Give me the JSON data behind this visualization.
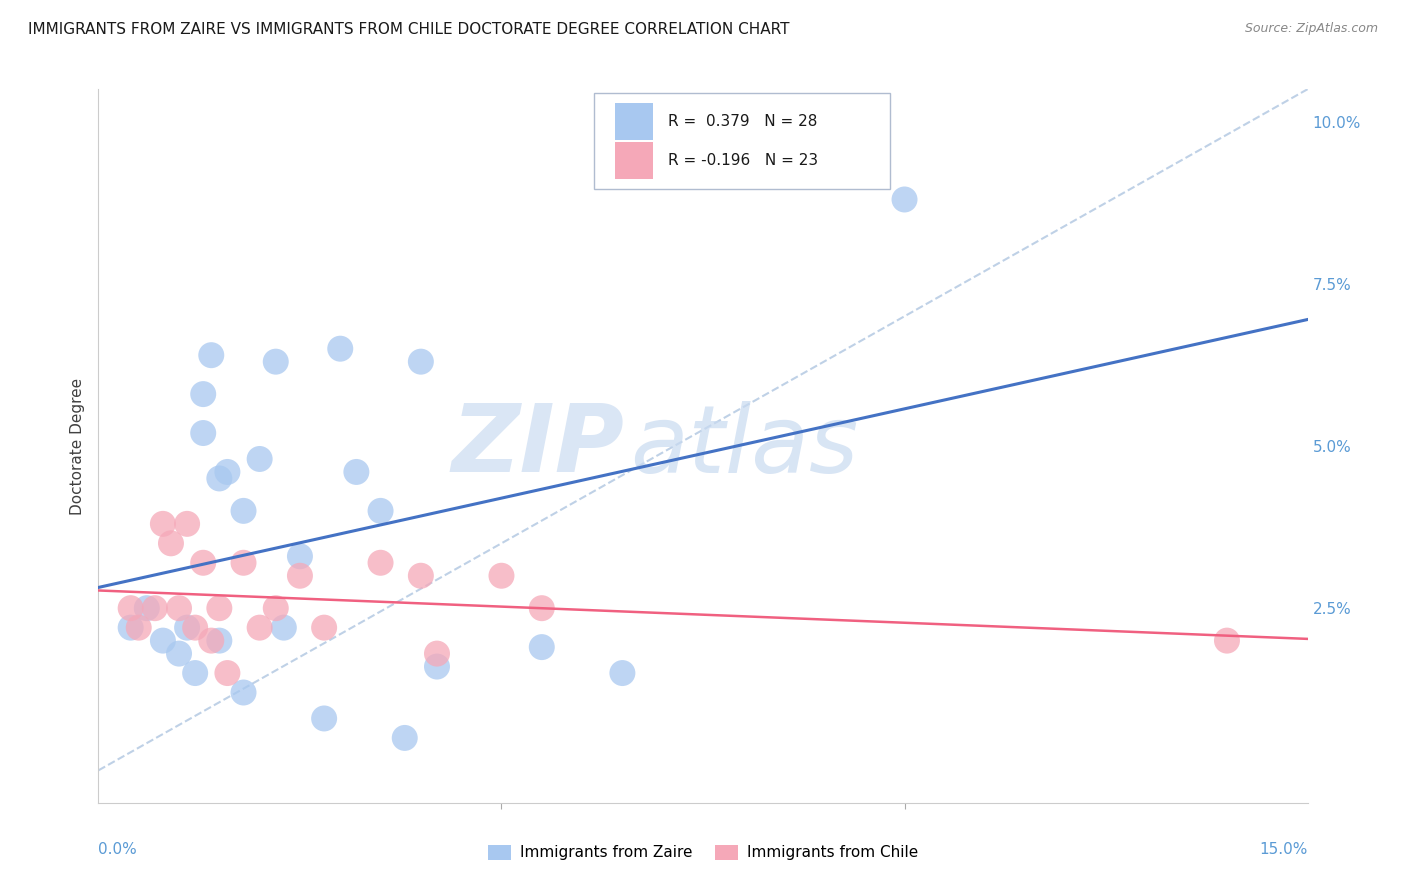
{
  "title": "IMMIGRANTS FROM ZAIRE VS IMMIGRANTS FROM CHILE DOCTORATE DEGREE CORRELATION CHART",
  "source": "Source: ZipAtlas.com",
  "ylabel": "Doctorate Degree",
  "right_yticks": [
    0.0,
    0.025,
    0.05,
    0.075,
    0.1
  ],
  "right_yticklabels": [
    "",
    "2.5%",
    "5.0%",
    "7.5%",
    "10.0%"
  ],
  "xlim": [
    0.0,
    0.15
  ],
  "ylim": [
    -0.005,
    0.105
  ],
  "watermark_zip": "ZIP",
  "watermark_atlas": "atlas",
  "zaire_R": 0.379,
  "zaire_N": 28,
  "chile_R": -0.196,
  "chile_N": 23,
  "zaire_color": "#a8c8f0",
  "chile_color": "#f5a8b8",
  "zaire_line_color": "#4472c4",
  "chile_line_color": "#f06080",
  "diagonal_color": "#b8cce4",
  "zaire_x": [
    0.004,
    0.006,
    0.008,
    0.01,
    0.011,
    0.012,
    0.013,
    0.013,
    0.014,
    0.015,
    0.015,
    0.016,
    0.018,
    0.018,
    0.02,
    0.022,
    0.023,
    0.025,
    0.028,
    0.03,
    0.032,
    0.035,
    0.038,
    0.04,
    0.042,
    0.055,
    0.065,
    0.1
  ],
  "zaire_y": [
    0.022,
    0.025,
    0.02,
    0.018,
    0.022,
    0.015,
    0.058,
    0.052,
    0.064,
    0.045,
    0.02,
    0.046,
    0.04,
    0.012,
    0.048,
    0.063,
    0.022,
    0.033,
    0.008,
    0.065,
    0.046,
    0.04,
    0.005,
    0.063,
    0.016,
    0.019,
    0.015,
    0.088
  ],
  "chile_x": [
    0.004,
    0.005,
    0.007,
    0.008,
    0.009,
    0.01,
    0.011,
    0.012,
    0.013,
    0.014,
    0.015,
    0.016,
    0.018,
    0.02,
    0.022,
    0.025,
    0.028,
    0.035,
    0.04,
    0.042,
    0.05,
    0.055,
    0.14
  ],
  "chile_y": [
    0.025,
    0.022,
    0.025,
    0.038,
    0.035,
    0.025,
    0.038,
    0.022,
    0.032,
    0.02,
    0.025,
    0.015,
    0.032,
    0.022,
    0.025,
    0.03,
    0.022,
    0.032,
    0.03,
    0.018,
    0.03,
    0.025,
    0.02
  ],
  "legend_zaire_label": "Immigrants from Zaire",
  "legend_chile_label": "Immigrants from Chile",
  "background_color": "#ffffff",
  "grid_color": "#dce6f1",
  "title_color": "#1a1a1a",
  "source_color": "#888888",
  "ylabel_color": "#404040",
  "tick_label_color": "#5b9bd5",
  "legend_text_color": "#1a1a1a"
}
